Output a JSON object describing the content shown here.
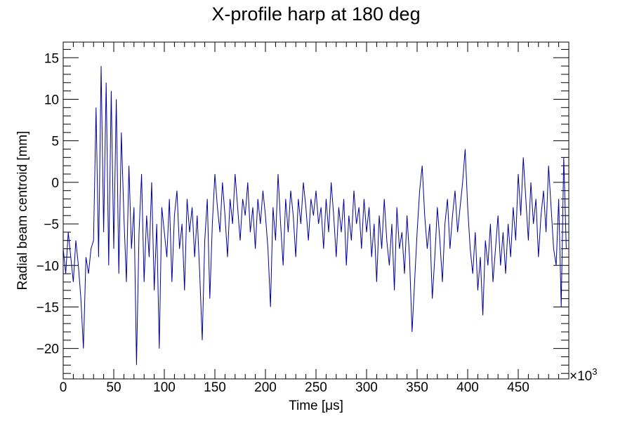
{
  "chart_data": {
    "type": "line",
    "title": "X-profile harp at 180 deg",
    "xlabel": "Time [μs]",
    "ylabel": "Radial beam centroid [mm]",
    "x_multiplier": "×10",
    "x_multiplier_exp": "3",
    "xlim": [
      0,
      500
    ],
    "ylim": [
      -23.66,
      16.88
    ],
    "xticks": [
      0,
      50,
      100,
      150,
      200,
      250,
      300,
      350,
      400,
      450
    ],
    "xtick_labels": [
      "0",
      "50",
      "100",
      "150",
      "200",
      "250",
      "300",
      "350",
      "400",
      "450"
    ],
    "yticks": [
      -20,
      -15,
      -10,
      -5,
      0,
      5,
      10,
      15
    ],
    "ytick_labels": [
      "−20",
      "−15",
      "−10",
      "−5",
      "0",
      "5",
      "10",
      "15"
    ],
    "grid": false,
    "line_color": "#000099",
    "series": [
      {
        "name": "centroid",
        "x_start": 0,
        "x_step": 2.5,
        "values": [
          -8,
          -11,
          -6,
          -9,
          -12,
          -7,
          -10,
          -14,
          -20,
          -9,
          -11,
          -8,
          -7,
          9,
          -9,
          14,
          -6,
          12,
          -10,
          11,
          -8,
          10,
          -11,
          6,
          -4,
          -12,
          2,
          -8,
          -3,
          -22,
          -6,
          1,
          -12,
          -4,
          -9,
          0,
          -13,
          -5,
          -20,
          -3,
          -6,
          -9,
          -2,
          -12,
          -4,
          -1,
          -8,
          -5,
          -13,
          -2,
          -6,
          -3,
          -9,
          -4,
          -11,
          -19,
          -7,
          -2,
          -14,
          -5,
          1,
          -3,
          -6,
          0,
          -4,
          -9,
          -2,
          -5,
          1,
          -3,
          -7,
          -2,
          -4,
          0,
          -6,
          -3,
          -8,
          -2,
          -5,
          -1,
          -4,
          -8,
          -15,
          -3,
          -7,
          1,
          -5,
          -10,
          -2,
          -6,
          -1,
          -4,
          -9,
          -2,
          -5,
          0,
          -3,
          -7,
          -2,
          -4,
          -1,
          -5,
          -3,
          -8,
          -2,
          -6,
          0,
          -4,
          -9,
          -3,
          -6,
          -2,
          -10,
          -4,
          -7,
          -1,
          -5,
          -3,
          -8,
          -2,
          -6,
          -3,
          -9,
          -5,
          -12,
          -4,
          -8,
          -2,
          -7,
          -10,
          -5,
          -13,
          -3,
          -8,
          -6,
          -11,
          -4,
          -9,
          -18,
          -12,
          -6,
          -1,
          2,
          -4,
          -8,
          -5,
          -14,
          -9,
          -3,
          -7,
          -12,
          -5,
          -2,
          -8,
          -4,
          -1,
          -6,
          -3,
          0,
          4,
          -3,
          -8,
          -11,
          -6,
          -13,
          -9,
          -16,
          -7,
          -10,
          -5,
          -12,
          -8,
          -4,
          -10,
          -6,
          -11,
          -5,
          -9,
          -3,
          -7,
          1,
          -4,
          3,
          -2,
          -7,
          0,
          -5,
          -2,
          -9,
          -4,
          -1,
          -6,
          2,
          -3,
          -8,
          -10,
          -2,
          -15,
          3,
          -8
        ]
      }
    ]
  }
}
